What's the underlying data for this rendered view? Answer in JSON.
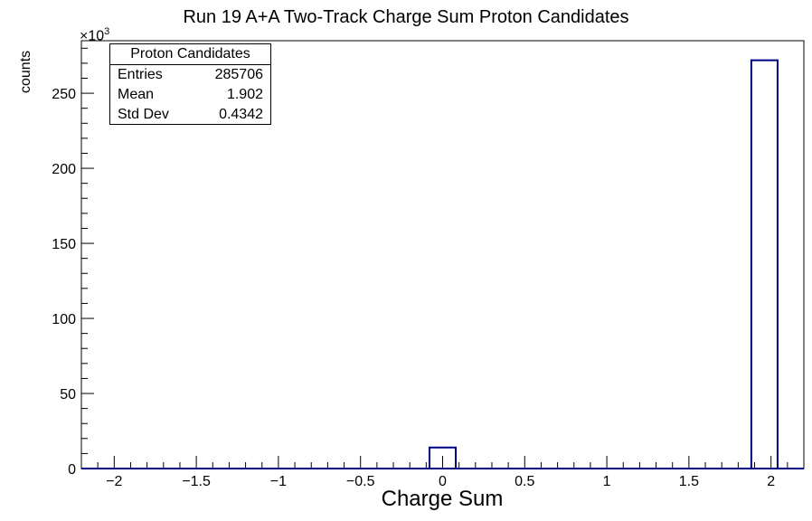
{
  "chart_data": {
    "type": "bar",
    "title": "Run 19 A+A Two-Track Charge Sum Proton Candidates",
    "xlabel": "Charge Sum",
    "ylabel": "counts",
    "y_scale_label": "×10",
    "y_scale_exponent": "3",
    "xlim": [
      -2.2,
      2.2
    ],
    "ylim": [
      0,
      285
    ],
    "x_ticks": [
      -2,
      -1.5,
      -1,
      -0.5,
      0,
      0.5,
      1,
      1.5,
      2
    ],
    "x_tick_labels": [
      "−2",
      "−1.5",
      "−1",
      "−0.5",
      "0",
      "0.5",
      "1",
      "1.5",
      "2"
    ],
    "y_ticks": [
      0,
      50,
      100,
      150,
      200,
      250
    ],
    "y_tick_labels": [
      "0",
      "50",
      "100",
      "150",
      "200",
      "250"
    ],
    "bins": [
      {
        "x_low": -0.08,
        "x_high": 0.08,
        "value": 14
      },
      {
        "x_low": 1.88,
        "x_high": 2.04,
        "value": 272
      }
    ],
    "line_color": "#000080",
    "grid": false,
    "stats_box": {
      "title": "Proton Candidates",
      "rows": [
        {
          "label": "Entries",
          "value": "285706"
        },
        {
          "label": "Mean",
          "value": "1.902"
        },
        {
          "label": "Std Dev",
          "value": "0.4342"
        }
      ]
    }
  }
}
